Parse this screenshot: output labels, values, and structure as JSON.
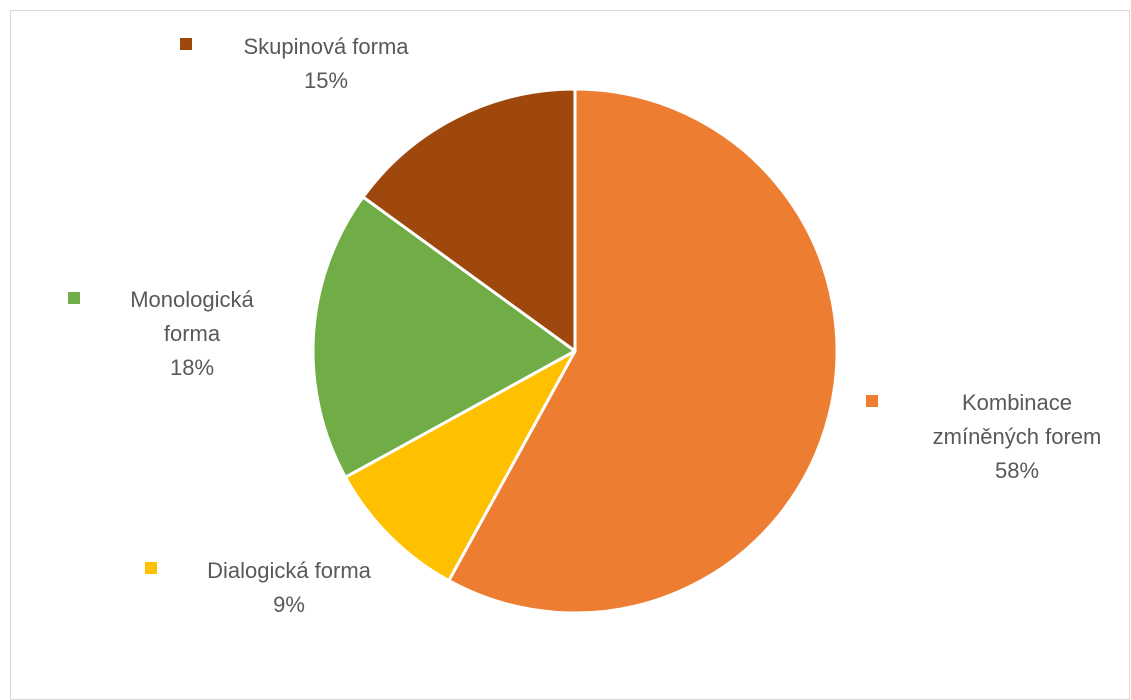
{
  "chart_data": {
    "type": "pie",
    "title": "",
    "legend": "none",
    "slices": [
      {
        "name": "Kombinace zmíněných forem",
        "label_lines": [
          "Kombinace",
          "zmíněných forem"
        ],
        "value": 58,
        "value_label": "58%",
        "color": "#ED7D31"
      },
      {
        "name": "Dialogická forma",
        "label_lines": [
          "Dialogická forma"
        ],
        "value": 9,
        "value_label": "9%",
        "color": "#FFC000"
      },
      {
        "name": "Monologická forma",
        "label_lines": [
          "Monologická",
          "forma"
        ],
        "value": 18,
        "value_label": "18%",
        "color": "#70AD47"
      },
      {
        "name": "Skupinová forma",
        "label_lines": [
          "Skupinová forma"
        ],
        "value": 15,
        "value_label": "15%",
        "color": "#9E480E"
      }
    ]
  }
}
